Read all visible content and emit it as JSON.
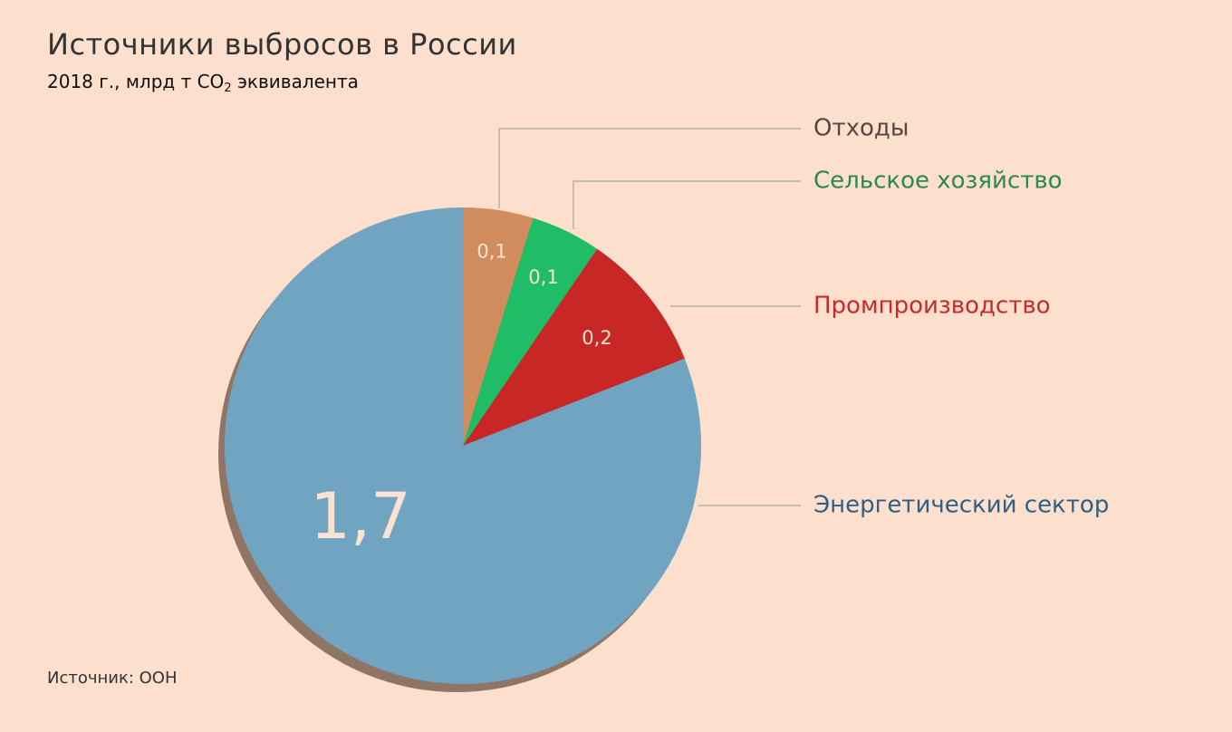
{
  "title": "Источники выбросов в России",
  "subtitle": {
    "prefix": "2018 г., млрд т CO",
    "sub": "2",
    "suffix": " эквивалента"
  },
  "source": "Источник: ООН",
  "chart_data": {
    "type": "pie",
    "slices": [
      {
        "name": "Отходы",
        "value": 0.1,
        "value_label": "0,1",
        "color": "#d08c5c",
        "label_color": "#554844"
      },
      {
        "name": "Сельское хозяйство",
        "value": 0.1,
        "value_label": "0,1",
        "color": "#1fbd66",
        "label_color": "#2a8a4c"
      },
      {
        "name": "Промпроизводство",
        "value": 0.2,
        "value_label": "0,2",
        "color": "#c92626",
        "label_color": "#c62a2a"
      },
      {
        "name": "Энергетический сектор",
        "value": 1.7,
        "value_label": "1,7",
        "color": "#71a4c1",
        "label_color": "#2e5f85"
      }
    ],
    "start_angle_deg": 0,
    "direction": "clockwise",
    "legend": "right, with leader lines",
    "shadow_color": "#8f7565"
  }
}
